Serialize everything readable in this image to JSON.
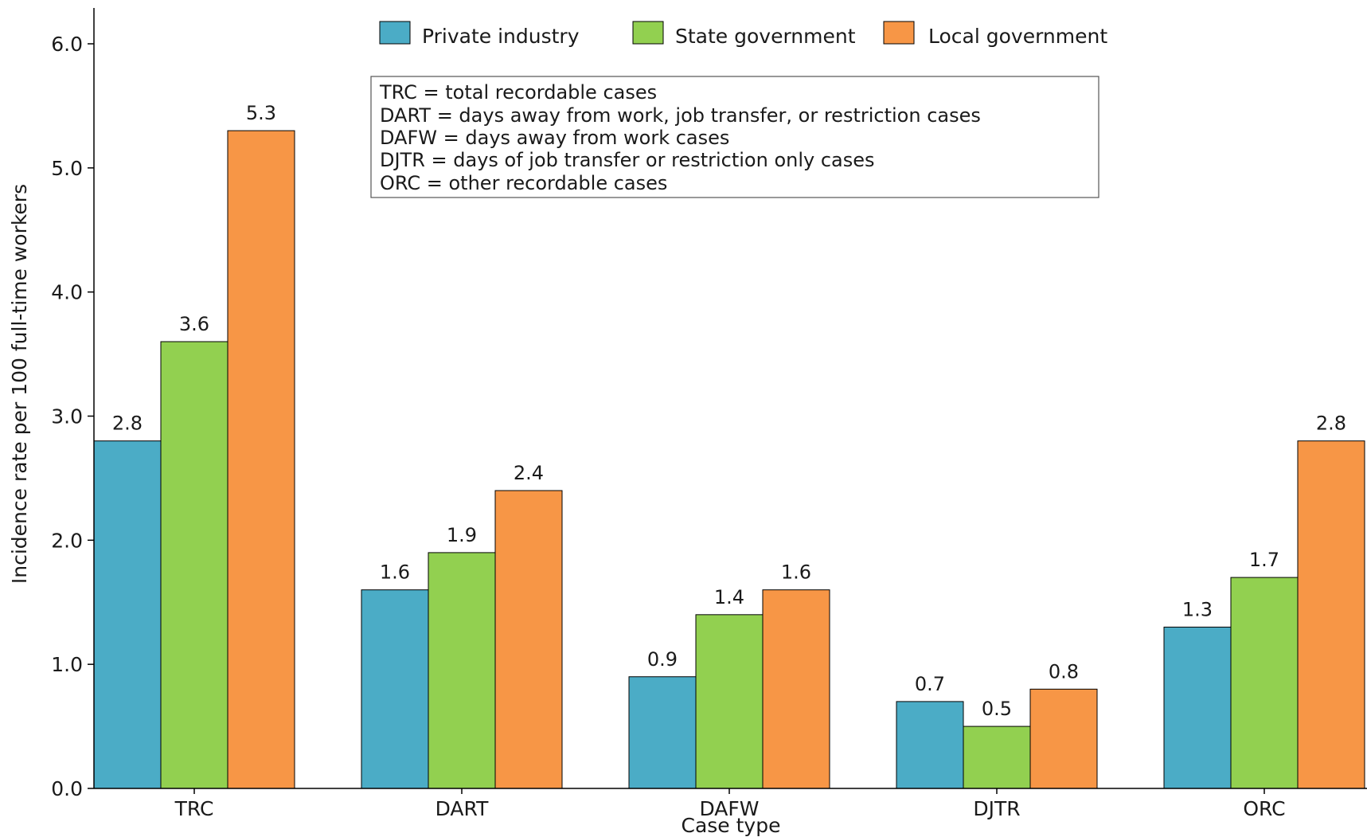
{
  "chart_data": {
    "type": "bar",
    "xlabel": "Case type",
    "ylabel": "Incidence rate per 100 full-time workers",
    "categories": [
      "TRC",
      "DART",
      "DAFW",
      "DJTR",
      "ORC"
    ],
    "series": [
      {
        "name": "Private industry",
        "color": "#4bacc6",
        "values": [
          2.8,
          1.6,
          0.9,
          0.7,
          1.3
        ]
      },
      {
        "name": "State government",
        "color": "#92d050",
        "values": [
          3.6,
          1.9,
          1.4,
          0.5,
          1.7
        ]
      },
      {
        "name": "Local government",
        "color": "#f79646",
        "values": [
          5.3,
          2.4,
          1.6,
          0.8,
          2.8
        ]
      }
    ],
    "ylim": [
      0,
      6.0
    ],
    "yticks": [
      "0.0",
      "1.0",
      "2.0",
      "3.0",
      "4.0",
      "5.0",
      "6.0"
    ],
    "legend_position": "top",
    "grid": false,
    "annotation_lines": [
      "TRC = total recordable cases",
      "DART = days away from work, job transfer, or restriction cases",
      "DAFW = days away from work cases",
      "DJTR = days of job transfer or restriction only cases",
      "ORC = other recordable cases"
    ]
  }
}
